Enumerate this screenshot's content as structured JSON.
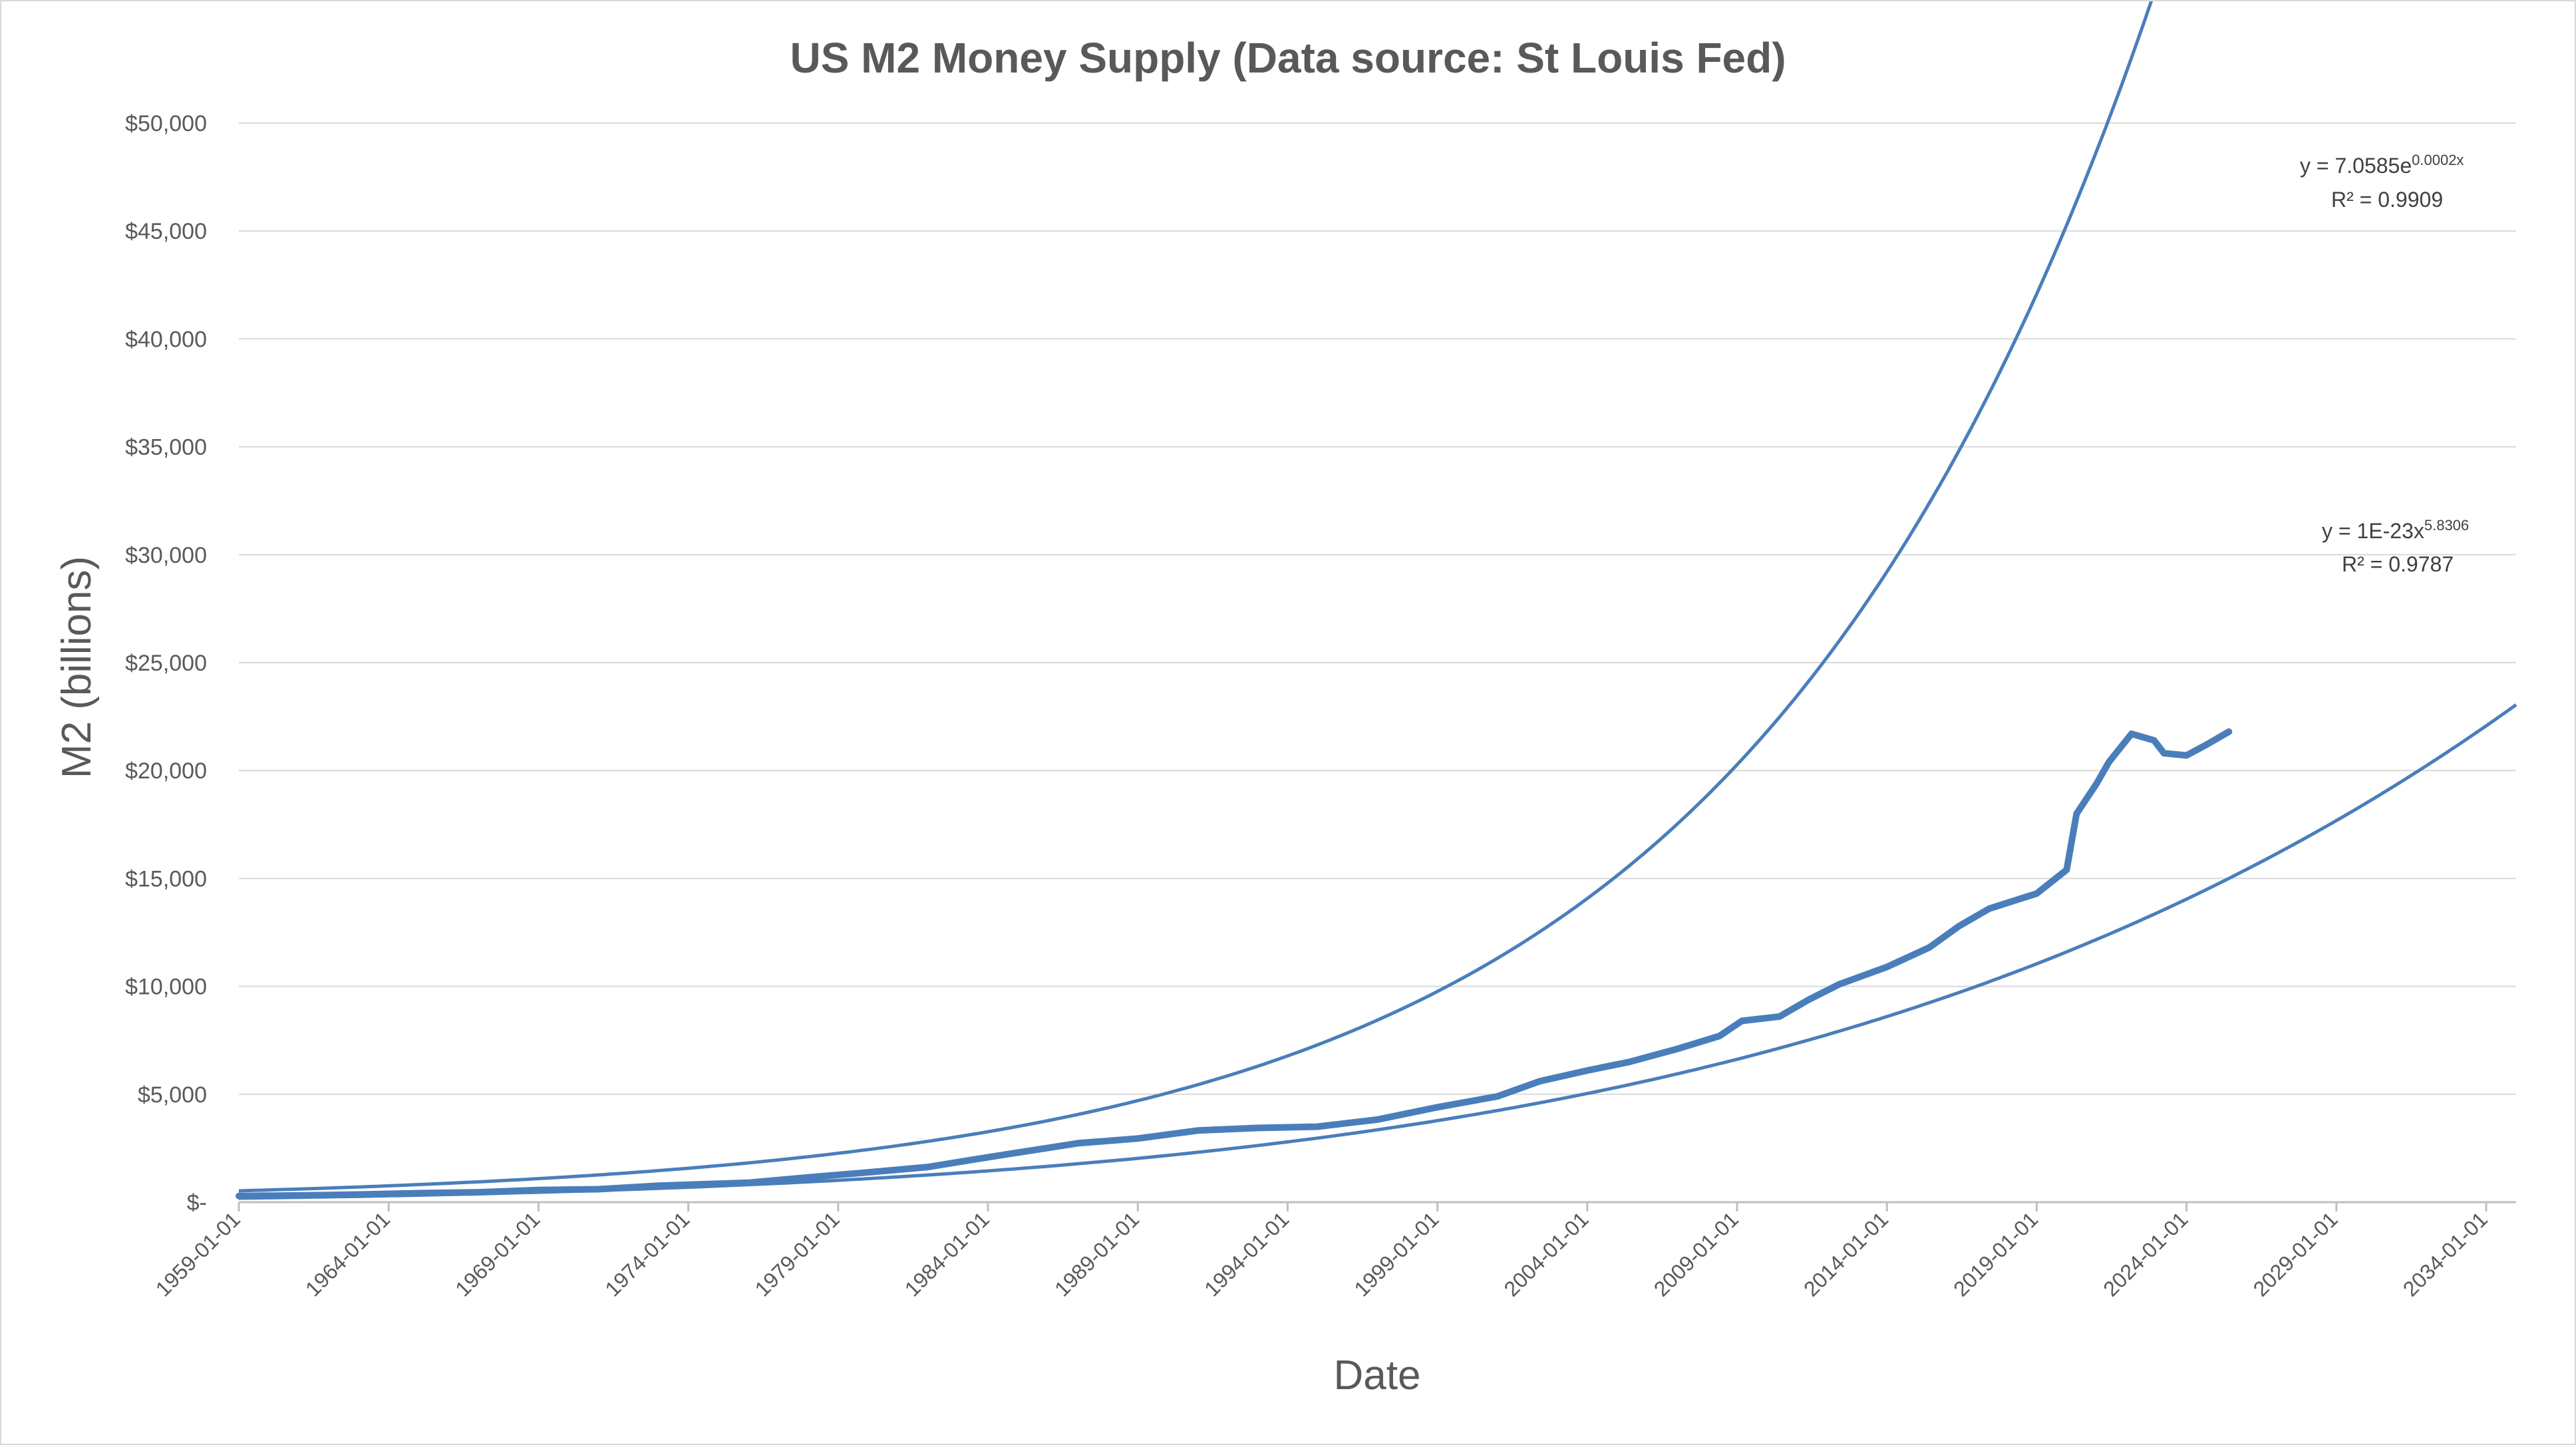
{
  "chart_data": {
    "type": "line",
    "title": "US M2 Money Supply (Data source: St Louis Fed)",
    "xlabel": "Date",
    "ylabel": "M2 (billions)",
    "xlim": [
      "1959-01-01",
      "2035-01-01"
    ],
    "ylim": [
      0,
      50000
    ],
    "x_ticks": [
      "1959-01-01",
      "1964-01-01",
      "1969-01-01",
      "1974-01-01",
      "1979-01-01",
      "1984-01-01",
      "1989-01-01",
      "1994-01-01",
      "1999-01-01",
      "2004-01-01",
      "2009-01-01",
      "2014-01-01",
      "2019-01-01",
      "2024-01-01",
      "2029-01-01",
      "2034-01-01"
    ],
    "y_ticks": [
      0,
      5000,
      10000,
      15000,
      20000,
      25000,
      30000,
      35000,
      40000,
      45000,
      50000
    ],
    "y_tick_labels": [
      "$-",
      "$5,000",
      "$10,000",
      "$15,000",
      "$20,000",
      "$25,000",
      "$30,000",
      "$35,000",
      "$40,000",
      "$45,000",
      "$50,000"
    ],
    "grid": true,
    "series": [
      {
        "color": "#4a7ebb",
        "points": [
          [
            "1959-01-01",
            286
          ],
          [
            "1961-01-01",
            310
          ],
          [
            "1963-01-01",
            355
          ],
          [
            "1965-01-01",
            415
          ],
          [
            "1967-01-01",
            460
          ],
          [
            "1969-01-01",
            560
          ],
          [
            "1971-01-01",
            600
          ],
          [
            "1973-01-01",
            760
          ],
          [
            "1974-01-01",
            810
          ],
          [
            "1976-01-01",
            900
          ],
          [
            "1978-01-01",
            1150
          ],
          [
            "1980-01-01",
            1380
          ],
          [
            "1982-01-01",
            1630
          ],
          [
            "1983-06-01",
            1950
          ],
          [
            "1985-01-01",
            2300
          ],
          [
            "1987-01-01",
            2730
          ],
          [
            "1989-01-01",
            2950
          ],
          [
            "1991-01-01",
            3320
          ],
          [
            "1993-01-01",
            3440
          ],
          [
            "1995-01-01",
            3500
          ],
          [
            "1997-01-01",
            3830
          ],
          [
            "1999-01-01",
            4400
          ],
          [
            "2001-01-01",
            4900
          ],
          [
            "2002-06-01",
            5600
          ],
          [
            "2004-01-01",
            6100
          ],
          [
            "2005-06-01",
            6500
          ],
          [
            "2007-01-01",
            7100
          ],
          [
            "2008-06-01",
            7700
          ],
          [
            "2009-03-01",
            8400
          ],
          [
            "2010-06-01",
            8600
          ],
          [
            "2011-06-01",
            9400
          ],
          [
            "2012-06-01",
            10100
          ],
          [
            "2014-01-01",
            10900
          ],
          [
            "2015-06-01",
            11800
          ],
          [
            "2016-06-01",
            12800
          ],
          [
            "2017-06-01",
            13600
          ],
          [
            "2019-01-01",
            14300
          ],
          [
            "2020-01-01",
            15400
          ],
          [
            "2020-05-01",
            18000
          ],
          [
            "2021-01-01",
            19400
          ],
          [
            "2021-06-01",
            20400
          ],
          [
            "2022-03-01",
            21700
          ],
          [
            "2022-12-01",
            21400
          ],
          [
            "2023-04-01",
            20800
          ],
          [
            "2024-01-01",
            20700
          ],
          [
            "2024-09-01",
            21200
          ],
          [
            "2025-06-01",
            21800
          ]
        ]
      }
    ],
    "trendlines": [
      {
        "type": "exponential",
        "equation": "y = 7.0585e",
        "equation_exp": "0.0002x",
        "r2": "R² = 0.9909",
        "a": 7.0585,
        "b": 0.0002,
        "color": "#4a7ebb"
      },
      {
        "type": "power",
        "equation": "y = 1E-23x",
        "equation_exp": "5.8306",
        "r2": "R² = 0.9787",
        "a": 1e-23,
        "b": 5.8306,
        "color": "#4a7ebb"
      }
    ]
  }
}
